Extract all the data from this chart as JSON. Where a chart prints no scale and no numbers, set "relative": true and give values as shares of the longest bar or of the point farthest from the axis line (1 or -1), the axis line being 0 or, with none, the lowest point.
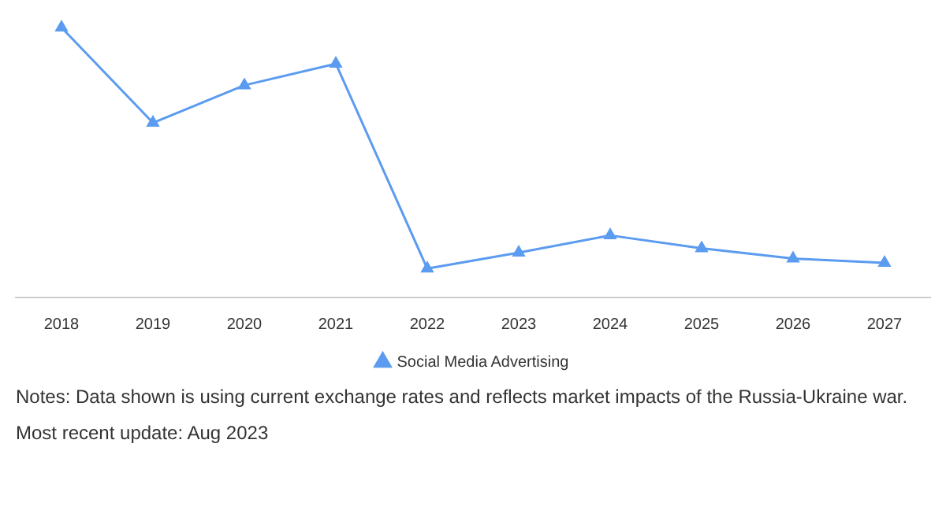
{
  "chart_data": {
    "type": "line",
    "relative": true,
    "categories": [
      "2018",
      "2019",
      "2020",
      "2021",
      "2022",
      "2023",
      "2024",
      "2025",
      "2026",
      "2027"
    ],
    "series": [
      {
        "name": "Social Media Advertising",
        "color": "#5b9bf0",
        "values": [
          1,
          0.647,
          0.786,
          0.866,
          0.107,
          0.166,
          0.23,
          0.182,
          0.144,
          0.128
        ]
      }
    ],
    "marker": "triangle",
    "legend": "bottom",
    "annotations": [
      "Notes: Data shown is using current exchange rates and reflects market impacts of the Russia-Ukraine war.",
      "Most recent update: Aug 2023"
    ]
  }
}
